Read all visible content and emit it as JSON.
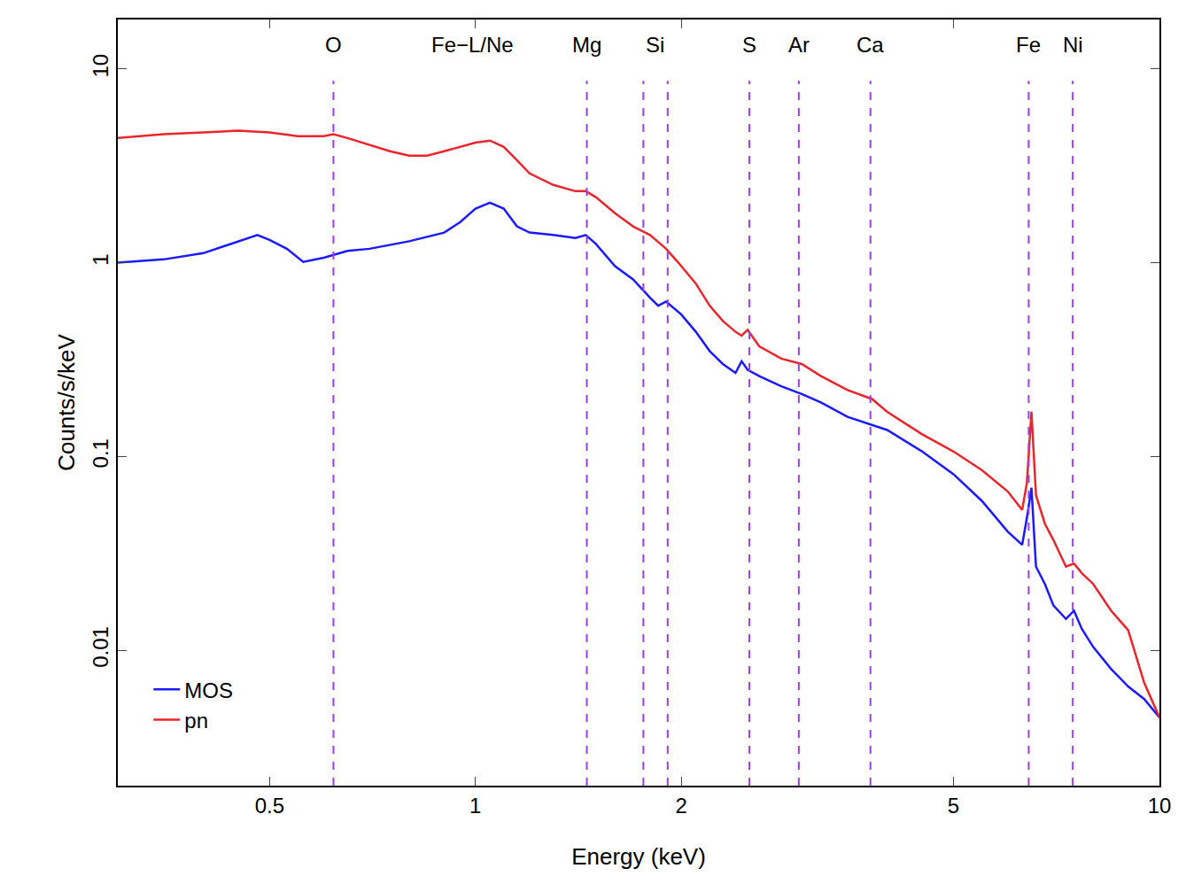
{
  "chart_data": {
    "type": "line",
    "x_label": "Energy (keV)",
    "y_label": "Counts/s/keV",
    "log": true,
    "grid": false,
    "legend": "bottom left",
    "xlim": [
      0.3,
      10
    ],
    "ylim": [
      0.002,
      18
    ],
    "xticks": [
      0.5,
      1,
      2,
      5,
      10
    ],
    "yticks": [
      0.01,
      0.1,
      1,
      10
    ],
    "line_style": "solid",
    "lines": {
      "color": "#9b3fe6",
      "line_style": "dash",
      "x": [
        0.62,
        1.455,
        1.76,
        1.91,
        2.515,
        2.97,
        3.78,
        6.44,
        7.47
      ]
    },
    "annotations": [
      {
        "text": "O",
        "x": 0.62
      },
      {
        "text": "Fe−L/Ne",
        "x": 0.99
      },
      {
        "text": "Mg",
        "x": 1.455
      },
      {
        "text": "Si",
        "x": 1.83
      },
      {
        "text": "S",
        "x": 2.515
      },
      {
        "text": "Ar",
        "x": 2.97
      },
      {
        "text": "Ca",
        "x": 3.78
      },
      {
        "text": "Fe",
        "x": 6.44
      },
      {
        "text": "Ni",
        "x": 7.47
      }
    ],
    "series": [
      {
        "name": "MOS",
        "color": "#1a1aff",
        "x": [
          0.3,
          0.35,
          0.4,
          0.45,
          0.48,
          0.5,
          0.53,
          0.56,
          0.6,
          0.65,
          0.7,
          0.8,
          0.9,
          0.95,
          1.0,
          1.05,
          1.1,
          1.15,
          1.2,
          1.3,
          1.4,
          1.45,
          1.5,
          1.6,
          1.7,
          1.8,
          1.85,
          1.9,
          2.0,
          2.1,
          2.2,
          2.3,
          2.4,
          2.45,
          2.5,
          2.6,
          2.8,
          3.0,
          3.2,
          3.5,
          3.8,
          4.0,
          4.5,
          5.0,
          5.5,
          6.0,
          6.3,
          6.4,
          6.5,
          6.6,
          6.8,
          7.0,
          7.3,
          7.5,
          7.7,
          8.0,
          8.5,
          9.0,
          9.5,
          10
        ],
        "values": [
          1.0,
          1.04,
          1.12,
          1.29,
          1.39,
          1.31,
          1.18,
          1.01,
          1.06,
          1.15,
          1.18,
          1.29,
          1.43,
          1.62,
          1.9,
          2.04,
          1.9,
          1.54,
          1.43,
          1.39,
          1.34,
          1.39,
          1.25,
          0.96,
          0.82,
          0.66,
          0.6,
          0.63,
          0.54,
          0.44,
          0.35,
          0.3,
          0.27,
          0.31,
          0.28,
          0.26,
          0.23,
          0.21,
          0.19,
          0.16,
          0.145,
          0.137,
          0.106,
          0.081,
          0.059,
          0.041,
          0.035,
          0.048,
          0.069,
          0.027,
          0.022,
          0.017,
          0.0145,
          0.016,
          0.0129,
          0.0104,
          0.008,
          0.0065,
          0.0056,
          0.0045
        ]
      },
      {
        "name": "pn",
        "color": "#e8262b",
        "x": [
          0.3,
          0.35,
          0.4,
          0.45,
          0.5,
          0.55,
          0.6,
          0.62,
          0.65,
          0.7,
          0.75,
          0.8,
          0.85,
          0.9,
          0.95,
          1.0,
          1.05,
          1.1,
          1.15,
          1.2,
          1.3,
          1.4,
          1.45,
          1.5,
          1.6,
          1.7,
          1.8,
          1.9,
          2.0,
          2.1,
          2.2,
          2.3,
          2.4,
          2.45,
          2.5,
          2.6,
          2.8,
          3.0,
          3.2,
          3.5,
          3.8,
          4.0,
          4.5,
          5.0,
          5.5,
          6.0,
          6.3,
          6.4,
          6.5,
          6.6,
          6.8,
          7.0,
          7.3,
          7.5,
          7.7,
          8.0,
          8.5,
          9.0,
          9.5,
          10
        ],
        "values": [
          4.4,
          4.6,
          4.7,
          4.8,
          4.7,
          4.5,
          4.5,
          4.6,
          4.4,
          4.05,
          3.76,
          3.57,
          3.57,
          3.76,
          3.96,
          4.17,
          4.27,
          3.96,
          3.38,
          2.89,
          2.52,
          2.34,
          2.34,
          2.18,
          1.8,
          1.54,
          1.39,
          1.18,
          0.96,
          0.78,
          0.6,
          0.5,
          0.44,
          0.42,
          0.45,
          0.37,
          0.32,
          0.3,
          0.26,
          0.22,
          0.198,
          0.17,
          0.13,
          0.106,
          0.085,
          0.066,
          0.053,
          0.073,
          0.17,
          0.063,
          0.045,
          0.037,
          0.027,
          0.028,
          0.025,
          0.022,
          0.016,
          0.0127,
          0.0068,
          0.0045
        ]
      }
    ]
  }
}
